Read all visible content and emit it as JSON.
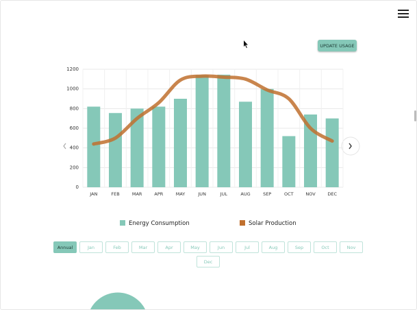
{
  "update_button": "UPDATE USAGE",
  "chart_data": {
    "type": "bar",
    "categories": [
      "JAN",
      "FEB",
      "MAR",
      "APR",
      "MAY",
      "JUN",
      "JUL",
      "AUG",
      "SEP",
      "OCT",
      "NOV",
      "DEC"
    ],
    "series": [
      {
        "name": "Energy Consumption",
        "type": "bar",
        "color": "#85c8b8",
        "values": [
          820,
          755,
          800,
          820,
          900,
          1140,
          1145,
          870,
          1000,
          520,
          740,
          700
        ]
      },
      {
        "name": "Solar Production",
        "type": "line",
        "color": "#c0702e",
        "values": [
          440,
          500,
          700,
          860,
          1090,
          1130,
          1120,
          1100,
          990,
          900,
          600,
          470
        ]
      }
    ],
    "ylim": [
      0,
      1200
    ],
    "yticks": [
      0,
      200,
      400,
      600,
      800,
      1000,
      1200
    ],
    "grid": true
  },
  "tabs": [
    "Annual",
    "Jan",
    "Feb",
    "Mar",
    "Apr",
    "May",
    "Jun",
    "Jul",
    "Aug",
    "Sep",
    "Oct",
    "Nov",
    "Dec"
  ],
  "active_tab": 0
}
